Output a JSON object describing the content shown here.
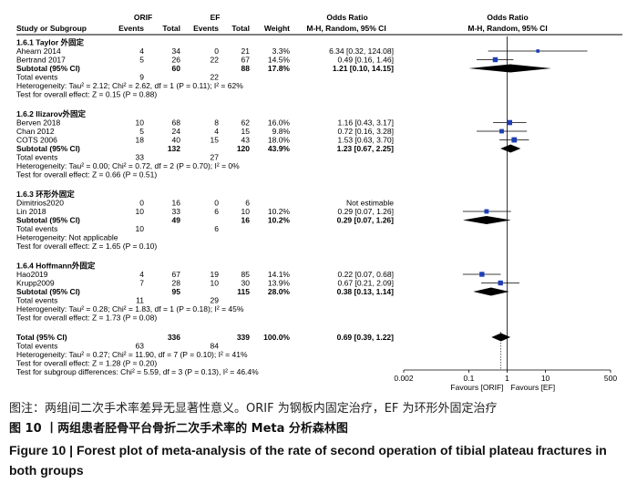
{
  "headers": {
    "group1": "ORIF",
    "group2": "EF",
    "or_table": "Odds Ratio",
    "or_plot": "Odds Ratio",
    "study": "Study or Subgroup",
    "events1": "Events",
    "total1": "Total",
    "events2": "Events",
    "total2": "Total",
    "weight": "Weight",
    "method_table": "M-H, Random, 95% CI",
    "method_plot": "M-H, Random, 95% CI"
  },
  "rows": [
    {
      "kind": "subgroup",
      "label": "1.6.1 Taylor 外固定"
    },
    {
      "kind": "study",
      "label": "Ahearn 2014",
      "e1": "4",
      "t1": "34",
      "e2": "0",
      "t2": "21",
      "w": "3.3%",
      "ci": "6.34 [0.32, 124.08]"
    },
    {
      "kind": "study",
      "label": "Bertrand 2017",
      "e1": "5",
      "t1": "26",
      "e2": "22",
      "t2": "67",
      "w": "14.5%",
      "ci": "0.49 [0.16, 1.46]"
    },
    {
      "kind": "subtotal",
      "label": "Subtotal (95% CI)",
      "t1": "60",
      "t2": "88",
      "w": "17.8%",
      "ci": "1.21 [0.10, 14.15]"
    },
    {
      "kind": "events",
      "label": "Total events",
      "e1": "9",
      "e2": "22"
    },
    {
      "kind": "text",
      "label": "Heterogeneity: Tau² = 2.12; Chi² = 2.62, df = 1 (P = 0.11); I² = 62%"
    },
    {
      "kind": "text",
      "label": "Test for overall effect: Z = 0.15 (P = 0.88)"
    },
    {
      "kind": "subgroup",
      "label": "1.6.2 Ilizarov外固定"
    },
    {
      "kind": "study",
      "label": "Berven 2018",
      "e1": "10",
      "t1": "68",
      "e2": "8",
      "t2": "62",
      "w": "16.0%",
      "ci": "1.16 [0.43, 3.17]"
    },
    {
      "kind": "study",
      "label": "Chan 2012",
      "e1": "5",
      "t1": "24",
      "e2": "4",
      "t2": "15",
      "w": "9.8%",
      "ci": "0.72 [0.16, 3.28]"
    },
    {
      "kind": "study",
      "label": "COTS 2006",
      "e1": "18",
      "t1": "40",
      "e2": "15",
      "t2": "43",
      "w": "18.0%",
      "ci": "1.53 [0.63, 3.70]"
    },
    {
      "kind": "subtotal",
      "label": "Subtotal (95% CI)",
      "t1": "132",
      "t2": "120",
      "w": "43.9%",
      "ci": "1.23 [0.67, 2.25]"
    },
    {
      "kind": "events",
      "label": "Total events",
      "e1": "33",
      "e2": "27"
    },
    {
      "kind": "text",
      "label": "Heterogeneity: Tau² = 0.00; Chi² = 0.72, df = 2 (P = 0.70); I² = 0%"
    },
    {
      "kind": "text",
      "label": "Test for overall effect: Z = 0.66 (P = 0.51)"
    },
    {
      "kind": "subgroup",
      "label": "1.6.3 环形外固定"
    },
    {
      "kind": "study",
      "label": "Dimitrios2020",
      "e1": "0",
      "t1": "16",
      "e2": "0",
      "t2": "6",
      "w": "",
      "ci": "Not estimable"
    },
    {
      "kind": "study",
      "label": "Lin 2018",
      "e1": "10",
      "t1": "33",
      "e2": "6",
      "t2": "10",
      "w": "10.2%",
      "ci": "0.29 [0.07, 1.26]"
    },
    {
      "kind": "subtotal",
      "label": "Subtotal (95% CI)",
      "t1": "49",
      "t2": "16",
      "w": "10.2%",
      "ci": "0.29 [0.07, 1.26]"
    },
    {
      "kind": "events",
      "label": "Total events",
      "e1": "10",
      "e2": "6"
    },
    {
      "kind": "text",
      "label": "Heterogeneity: Not applicable"
    },
    {
      "kind": "text",
      "label": "Test for overall effect: Z = 1.65 (P = 0.10)"
    },
    {
      "kind": "subgroup",
      "label": "1.6.4 Hoffmann外固定"
    },
    {
      "kind": "study",
      "label": "Hao2019",
      "e1": "4",
      "t1": "67",
      "e2": "19",
      "t2": "85",
      "w": "14.1%",
      "ci": "0.22 [0.07, 0.68]"
    },
    {
      "kind": "study",
      "label": "Krupp2009",
      "e1": "7",
      "t1": "28",
      "e2": "10",
      "t2": "30",
      "w": "13.9%",
      "ci": "0.67 [0.21, 2.09]"
    },
    {
      "kind": "subtotal",
      "label": "Subtotal (95% CI)",
      "t1": "95",
      "t2": "115",
      "w": "28.0%",
      "ci": "0.38 [0.13, 1.14]"
    },
    {
      "kind": "events",
      "label": "Total events",
      "e1": "11",
      "e2": "29"
    },
    {
      "kind": "text",
      "label": "Heterogeneity: Tau² = 0.28; Chi² = 1.83, df = 1 (P = 0.18); I² = 45%"
    },
    {
      "kind": "text",
      "label": "Test for overall effect: Z = 1.73 (P = 0.08)"
    },
    {
      "kind": "total",
      "label": "Total (95% CI)",
      "t1": "336",
      "t2": "339",
      "w": "100.0%",
      "ci": "0.69 [0.39, 1.22]"
    },
    {
      "kind": "events",
      "label": "Total events",
      "e1": "63",
      "e2": "84"
    },
    {
      "kind": "text",
      "label": "Heterogeneity: Tau² = 0.27; Chi² = 11.90, df = 7 (P = 0.10); I² = 41%"
    },
    {
      "kind": "text",
      "label": "Test for overall effect: Z = 1.28 (P = 0.20)"
    },
    {
      "kind": "text",
      "label": "Test for subgroup differences: Chi² = 5.59, df = 3 (P = 0.13), I² = 46.4%"
    }
  ],
  "chart_data": {
    "type": "forest",
    "scale": "log",
    "xlim": [
      0.002,
      500
    ],
    "ticks": [
      {
        "value": 0.002,
        "label": "0.002"
      },
      {
        "value": 0.1,
        "label": "0.1"
      },
      {
        "value": 1,
        "label": "1"
      },
      {
        "value": 10,
        "label": "10"
      },
      {
        "value": 500,
        "label": "500"
      }
    ],
    "favours_left": "Favours [ORIF]",
    "favours_right": "Favours [EF]",
    "studies": [
      {
        "row": 1,
        "or": 6.34,
        "lo": 0.32,
        "hi": 124.08,
        "weight": 3.3
      },
      {
        "row": 2,
        "or": 0.49,
        "lo": 0.16,
        "hi": 1.46,
        "weight": 14.5
      },
      {
        "row": 8,
        "or": 1.16,
        "lo": 0.43,
        "hi": 3.17,
        "weight": 16.0
      },
      {
        "row": 9,
        "or": 0.72,
        "lo": 0.16,
        "hi": 3.28,
        "weight": 9.8
      },
      {
        "row": 10,
        "or": 1.53,
        "lo": 0.63,
        "hi": 3.7,
        "weight": 18.0
      },
      {
        "row": 17,
        "or": 0.29,
        "lo": 0.07,
        "hi": 1.26,
        "weight": 10.2
      },
      {
        "row": 23,
        "or": 0.22,
        "lo": 0.07,
        "hi": 0.68,
        "weight": 14.1
      },
      {
        "row": 24,
        "or": 0.67,
        "lo": 0.21,
        "hi": 2.09,
        "weight": 13.9
      }
    ],
    "diamonds": [
      {
        "row": 3,
        "or": 1.21,
        "lo": 0.1,
        "hi": 14.15
      },
      {
        "row": 11,
        "or": 1.23,
        "lo": 0.67,
        "hi": 2.25
      },
      {
        "row": 18,
        "or": 0.29,
        "lo": 0.07,
        "hi": 1.26
      },
      {
        "row": 25,
        "or": 0.38,
        "lo": 0.13,
        "hi": 1.14
      },
      {
        "row": 29,
        "or": 0.69,
        "lo": 0.39,
        "hi": 1.22
      }
    ]
  },
  "caption": {
    "note": "图注：两组间二次手术率差异无显著性意义。ORIF 为钢板内固定治疗，EF 为环形外固定治疗",
    "title_cn": "图 10 丨两组患者胫骨平台骨折二次手术率的 Meta 分析森林图",
    "title_en_line1": "Figure 10  |  Forest plot of meta-analysis of the rate of second operation of tibial plateau fractures in",
    "title_en_line2": "both groups"
  }
}
